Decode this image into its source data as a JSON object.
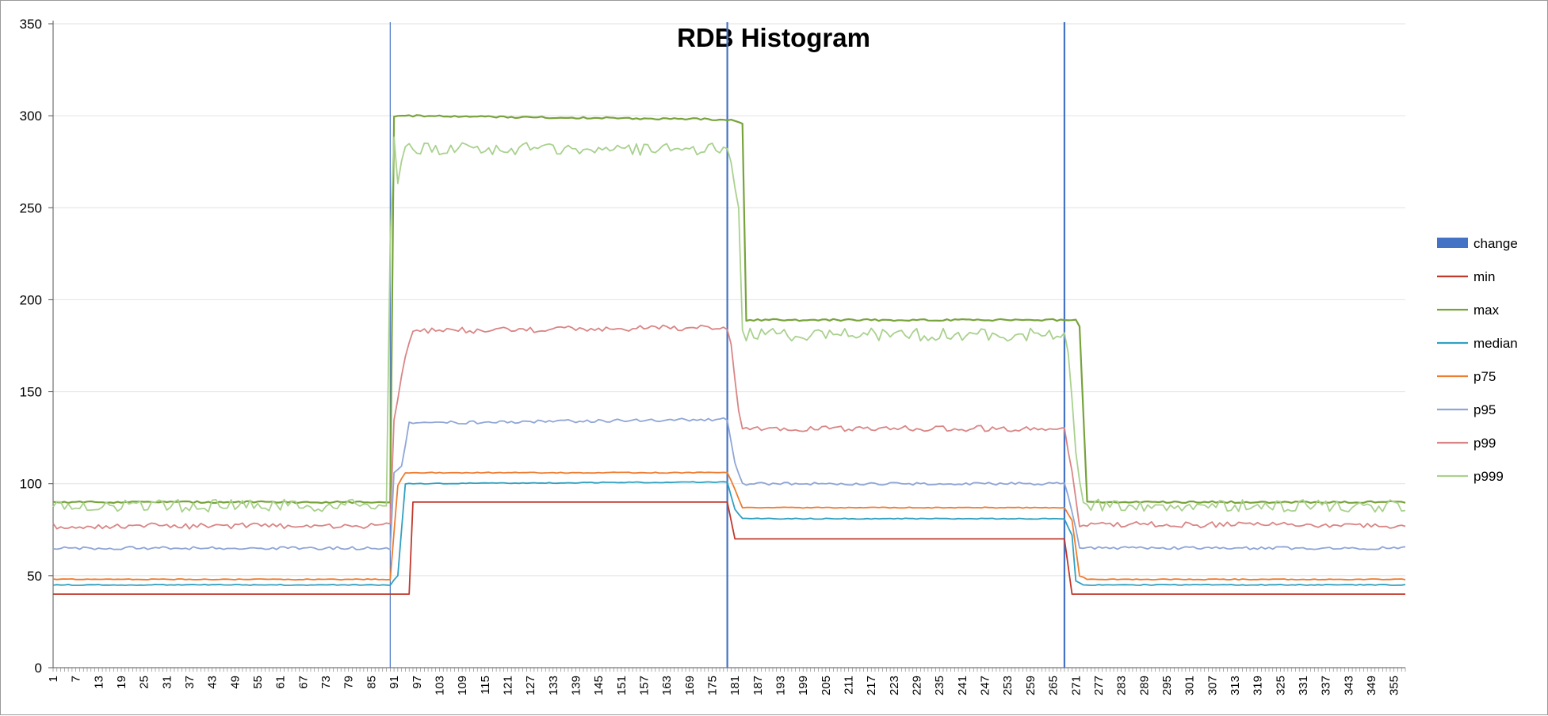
{
  "chart_data": {
    "type": "line",
    "title": "RDB Histogram",
    "xlabel": "",
    "ylabel": "",
    "ylim": [
      0,
      350
    ],
    "yticks": [
      0,
      50,
      100,
      150,
      200,
      250,
      300,
      350
    ],
    "x_range": [
      1,
      358
    ],
    "x_tick_step": 6,
    "grid": "horizontal",
    "legend_position": "right",
    "change_markers": [
      {
        "x": 90
      },
      {
        "x": 179
      },
      {
        "x": 268
      }
    ],
    "series": [
      {
        "name": "change",
        "color": "#4472c4",
        "style": "bar"
      },
      {
        "name": "min",
        "color": "#c0392b",
        "segments": [
          [
            1,
            40
          ],
          [
            95,
            40
          ],
          [
            96,
            90
          ],
          [
            179,
            90
          ],
          [
            181,
            70
          ],
          [
            268,
            70
          ],
          [
            270,
            40
          ],
          [
            358,
            40
          ]
        ]
      },
      {
        "name": "max",
        "color": "#77a33b",
        "segments": [
          [
            1,
            90
          ],
          [
            90,
            90
          ],
          [
            91,
            300
          ],
          [
            179,
            298
          ],
          [
            183,
            296
          ],
          [
            184,
            189
          ],
          [
            271,
            189
          ],
          [
            272,
            185
          ],
          [
            274,
            90
          ],
          [
            358,
            90
          ]
        ]
      },
      {
        "name": "median",
        "color": "#31a0c0",
        "segments": [
          [
            1,
            45
          ],
          [
            90,
            45
          ],
          [
            92,
            50
          ],
          [
            94,
            100
          ],
          [
            179,
            101
          ],
          [
            181,
            86
          ],
          [
            183,
            81
          ],
          [
            268,
            81
          ],
          [
            270,
            72
          ],
          [
            271,
            47
          ],
          [
            273,
            45
          ],
          [
            358,
            45
          ]
        ]
      },
      {
        "name": "p75",
        "color": "#ed7d31",
        "segments": [
          [
            1,
            48
          ],
          [
            90,
            48
          ],
          [
            92,
            99
          ],
          [
            94,
            106
          ],
          [
            179,
            106
          ],
          [
            181,
            97
          ],
          [
            183,
            87
          ],
          [
            268,
            87
          ],
          [
            270,
            80
          ],
          [
            272,
            50
          ],
          [
            274,
            48
          ],
          [
            358,
            48
          ]
        ]
      },
      {
        "name": "p95",
        "color": "#8fa6d6",
        "segments": [
          [
            1,
            65
          ],
          [
            90,
            65
          ],
          [
            91,
            106
          ],
          [
            93,
            110
          ],
          [
            95,
            133
          ],
          [
            179,
            135
          ],
          [
            181,
            112
          ],
          [
            183,
            100
          ],
          [
            268,
            100
          ],
          [
            270,
            85
          ],
          [
            272,
            65
          ],
          [
            358,
            65
          ]
        ]
      },
      {
        "name": "p99",
        "color": "#da8585",
        "segments": [
          [
            1,
            77
          ],
          [
            90,
            77
          ],
          [
            91,
            135
          ],
          [
            93,
            160
          ],
          [
            96,
            183
          ],
          [
            179,
            185
          ],
          [
            180,
            175
          ],
          [
            182,
            140
          ],
          [
            183,
            130
          ],
          [
            268,
            130
          ],
          [
            270,
            108
          ],
          [
            272,
            78
          ],
          [
            358,
            77
          ]
        ]
      },
      {
        "name": "p999",
        "color": "#a9d18e",
        "segments": [
          [
            1,
            88
          ],
          [
            89,
            88
          ],
          [
            90,
            230
          ],
          [
            91,
            285
          ],
          [
            92,
            265
          ],
          [
            94,
            282
          ],
          [
            179,
            282
          ],
          [
            182,
            250
          ],
          [
            183,
            181
          ],
          [
            268,
            181
          ],
          [
            269,
            170
          ],
          [
            271,
            120
          ],
          [
            273,
            88
          ],
          [
            358,
            88
          ]
        ]
      }
    ]
  }
}
